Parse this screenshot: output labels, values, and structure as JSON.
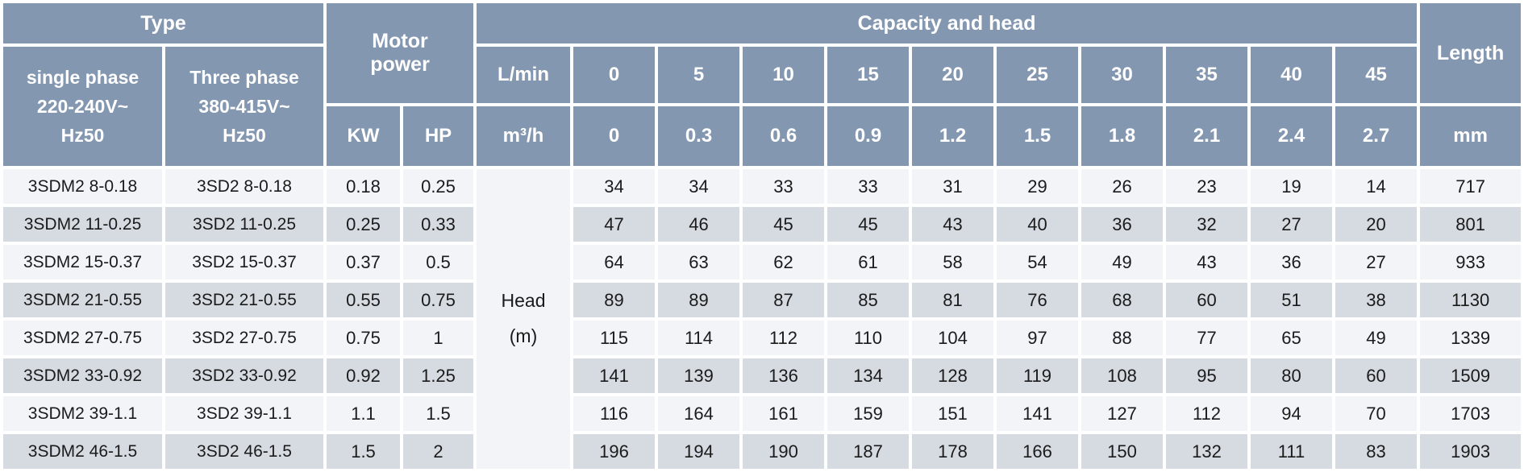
{
  "colors": {
    "header_bg": "#8497b1",
    "row_light": "#f3f4f8",
    "row_dark": "#d6dbe2",
    "grid": "#ffffff",
    "data_text": "#1b1b1b",
    "header_text": "#ffffff"
  },
  "table": {
    "header": {
      "type_label": "Type",
      "motor_power_label": "Motor power",
      "capacity_label": "Capacity and head",
      "length_label": "Length",
      "single_phase_lines": [
        "single phase",
        "220-240V~",
        "Hz50"
      ],
      "three_phase_lines": [
        "Three phase",
        "380-415V~",
        "Hz50"
      ],
      "kw_label": "KW",
      "hp_label": "HP",
      "lmin_label": "L/min",
      "m3h_label": "m³/h",
      "mm_label": "mm",
      "flow_lmin": [
        "0",
        "5",
        "10",
        "15",
        "20",
        "25",
        "30",
        "35",
        "40",
        "45"
      ],
      "flow_m3h": [
        "0",
        "0.3",
        "0.6",
        "0.9",
        "1.2",
        "1.5",
        "1.8",
        "2.1",
        "2.4",
        "2.7"
      ],
      "head_unit_lines": [
        "Head",
        "(m)"
      ]
    },
    "rows": [
      {
        "single": "3SDM2 8-0.18",
        "three": "3SD2 8-0.18",
        "kw": "0.18",
        "hp": "0.25",
        "heads": [
          "34",
          "34",
          "33",
          "33",
          "31",
          "29",
          "26",
          "23",
          "19",
          "14"
        ],
        "length": "717"
      },
      {
        "single": "3SDM2 11-0.25",
        "three": "3SD2 11-0.25",
        "kw": "0.25",
        "hp": "0.33",
        "heads": [
          "47",
          "46",
          "45",
          "45",
          "43",
          "40",
          "36",
          "32",
          "27",
          "20"
        ],
        "length": "801"
      },
      {
        "single": "3SDM2 15-0.37",
        "three": "3SD2 15-0.37",
        "kw": "0.37",
        "hp": "0.5",
        "heads": [
          "64",
          "63",
          "62",
          "61",
          "58",
          "54",
          "49",
          "43",
          "36",
          "27"
        ],
        "length": "933"
      },
      {
        "single": "3SDM2 21-0.55",
        "three": "3SD2 21-0.55",
        "kw": "0.55",
        "hp": "0.75",
        "heads": [
          "89",
          "89",
          "87",
          "85",
          "81",
          "76",
          "68",
          "60",
          "51",
          "38"
        ],
        "length": "1130"
      },
      {
        "single": "3SDM2 27-0.75",
        "three": "3SD2 27-0.75",
        "kw": "0.75",
        "hp": "1",
        "heads": [
          "115",
          "114",
          "112",
          "110",
          "104",
          "97",
          "88",
          "77",
          "65",
          "49"
        ],
        "length": "1339"
      },
      {
        "single": "3SDM2 33-0.92",
        "three": "3SD2 33-0.92",
        "kw": "0.92",
        "hp": "1.25",
        "heads": [
          "141",
          "139",
          "136",
          "134",
          "128",
          "119",
          "108",
          "95",
          "80",
          "60"
        ],
        "length": "1509"
      },
      {
        "single": "3SDM2 39-1.1",
        "three": "3SD2 39-1.1",
        "kw": "1.1",
        "hp": "1.5",
        "heads": [
          "116",
          "164",
          "161",
          "159",
          "151",
          "141",
          "127",
          "112",
          "94",
          "70"
        ],
        "length": "1703"
      },
      {
        "single": "3SDM2 46-1.5",
        "three": "3SD2 46-1.5",
        "kw": "1.5",
        "hp": "2",
        "heads": [
          "196",
          "194",
          "190",
          "187",
          "178",
          "166",
          "150",
          "132",
          "111",
          "83"
        ],
        "length": "1903"
      }
    ]
  }
}
